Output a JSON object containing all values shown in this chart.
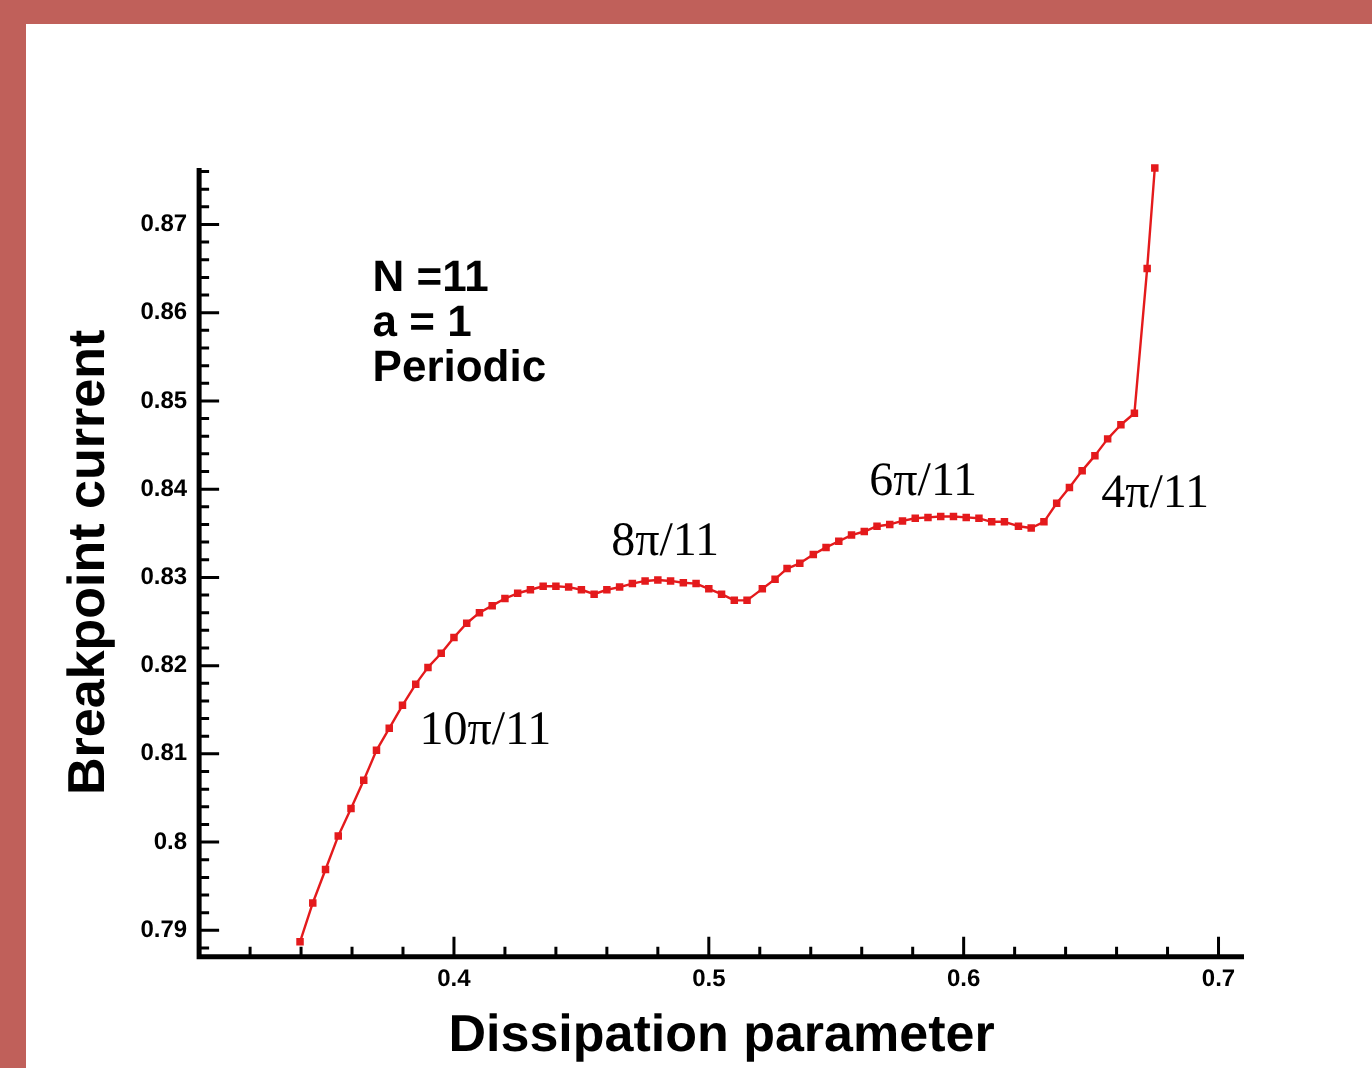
{
  "chart_data": {
    "type": "line",
    "xlabel": "Dissipation parameter",
    "ylabel": "Breakpoint current",
    "annotations": [
      "N =11",
      "a = 1",
      "Periodic",
      "10π/11",
      "8π/11",
      "6π/11",
      "4π/11"
    ],
    "x": [
      0.3396,
      0.3446,
      0.3496,
      0.3546,
      0.3596,
      0.3646,
      0.3696,
      0.3746,
      0.3798,
      0.385,
      0.3898,
      0.395,
      0.4,
      0.405,
      0.41,
      0.415,
      0.42,
      0.425,
      0.43,
      0.435,
      0.44,
      0.445,
      0.45,
      0.455,
      0.46,
      0.465,
      0.47,
      0.475,
      0.48,
      0.485,
      0.49,
      0.495,
      0.5,
      0.505,
      0.51,
      0.515,
      0.521,
      0.526,
      0.5307,
      0.5357,
      0.541,
      0.546,
      0.551,
      0.556,
      0.561,
      0.566,
      0.571,
      0.576,
      0.581,
      0.586,
      0.591,
      0.596,
      0.601,
      0.606,
      0.611,
      0.616,
      0.6215,
      0.6265,
      0.6315,
      0.6365,
      0.6415,
      0.6465,
      0.6515,
      0.6565,
      0.6617,
      0.667,
      0.672,
      0.675
    ],
    "series": [
      {
        "color": "#e41a1c",
        "values": [
          0.7887,
          0.7931,
          0.7969,
          0.8007,
          0.8038,
          0.807,
          0.8104,
          0.8129,
          0.8155,
          0.8179,
          0.8198,
          0.8214,
          0.8232,
          0.8248,
          0.826,
          0.8268,
          0.8276,
          0.8282,
          0.8286,
          0.829,
          0.829,
          0.8289,
          0.8286,
          0.8281,
          0.8286,
          0.8289,
          0.8293,
          0.8296,
          0.8297,
          0.8296,
          0.8294,
          0.8293,
          0.8287,
          0.8281,
          0.8274,
          0.8274,
          0.8287,
          0.8298,
          0.831,
          0.8316,
          0.8326,
          0.8334,
          0.8341,
          0.8348,
          0.8352,
          0.8358,
          0.836,
          0.8364,
          0.8367,
          0.8368,
          0.8369,
          0.8369,
          0.8368,
          0.8367,
          0.8363,
          0.8363,
          0.8358,
          0.8356,
          0.8363,
          0.8384,
          0.8402,
          0.8421,
          0.8438,
          0.8457,
          0.8473,
          0.8486,
          0.865,
          0.8764
        ]
      }
    ],
    "marker": "square",
    "line_style": "solid",
    "grid": false,
    "legend": false,
    "xlim": [
      0.3,
      0.71
    ],
    "ylim": [
      0.787,
      0.8764
    ],
    "xticks": [
      {
        "value": 0.32,
        "label": null
      },
      {
        "value": 0.34,
        "label": null
      },
      {
        "value": 0.36,
        "label": null
      },
      {
        "value": 0.38,
        "label": null
      },
      0.4,
      {
        "value": 0.42,
        "label": null
      },
      {
        "value": 0.44,
        "label": null
      },
      {
        "value": 0.46,
        "label": null
      },
      {
        "value": 0.48,
        "label": null
      },
      0.5,
      {
        "value": 0.52,
        "label": null
      },
      {
        "value": 0.54,
        "label": null
      },
      {
        "value": 0.56,
        "label": null
      },
      {
        "value": 0.58,
        "label": null
      },
      0.6,
      {
        "value": 0.62,
        "label": null
      },
      {
        "value": 0.64,
        "label": null
      },
      {
        "value": 0.66,
        "label": null
      },
      {
        "value": 0.68,
        "label": null
      },
      0.7
    ],
    "yticks": [
      {
        "value": 0.788,
        "label": null
      },
      0.79,
      {
        "value": 0.792,
        "label": null
      },
      {
        "value": 0.794,
        "label": null
      },
      {
        "value": 0.796,
        "label": null
      },
      {
        "value": 0.798,
        "label": null
      },
      0.8,
      {
        "value": 0.802,
        "label": null
      },
      {
        "value": 0.804,
        "label": null
      },
      {
        "value": 0.806,
        "label": null
      },
      {
        "value": 0.808,
        "label": null
      },
      0.81,
      {
        "value": 0.812,
        "label": null
      },
      {
        "value": 0.814,
        "label": null
      },
      {
        "value": 0.816,
        "label": null
      },
      {
        "value": 0.818,
        "label": null
      },
      0.82,
      {
        "value": 0.822,
        "label": null
      },
      {
        "value": 0.824,
        "label": null
      },
      {
        "value": 0.826,
        "label": null
      },
      {
        "value": 0.828,
        "label": null
      },
      0.83,
      {
        "value": 0.832,
        "label": null
      },
      {
        "value": 0.834,
        "label": null
      },
      {
        "value": 0.836,
        "label": null
      },
      {
        "value": 0.838,
        "label": null
      },
      0.84,
      {
        "value": 0.842,
        "label": null
      },
      {
        "value": 0.844,
        "label": null
      },
      {
        "value": 0.846,
        "label": null
      },
      {
        "value": 0.848,
        "label": null
      },
      0.85,
      {
        "value": 0.852,
        "label": null
      },
      {
        "value": 0.854,
        "label": null
      },
      {
        "value": 0.856,
        "label": null
      },
      {
        "value": 0.858,
        "label": null
      },
      0.86,
      {
        "value": 0.862,
        "label": null
      },
      {
        "value": 0.864,
        "label": null
      },
      {
        "value": 0.866,
        "label": null
      },
      {
        "value": 0.868,
        "label": null
      },
      0.87,
      {
        "value": 0.872,
        "label": null
      },
      {
        "value": 0.874,
        "label": null
      },
      {
        "value": 0.876,
        "label": null
      }
    ]
  }
}
